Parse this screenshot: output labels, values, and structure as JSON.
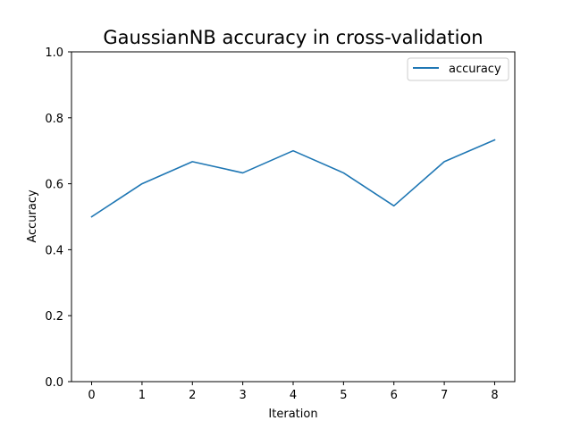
{
  "chart_data": {
    "type": "line",
    "title": "GaussianNB accuracy in cross-validation",
    "xlabel": "Iteration",
    "ylabel": "Accuracy",
    "x": [
      0,
      1,
      2,
      3,
      4,
      5,
      6,
      7,
      8
    ],
    "xticks": [
      0,
      1,
      2,
      3,
      4,
      5,
      6,
      7,
      8
    ],
    "xtick_labels": [
      "0",
      "1",
      "2",
      "3",
      "4",
      "5",
      "6",
      "7",
      "8"
    ],
    "yticks": [
      0.0,
      0.2,
      0.4,
      0.6,
      0.8,
      1.0
    ],
    "ytick_labels": [
      "0.0",
      "0.2",
      "0.4",
      "0.6",
      "0.8",
      "1.0"
    ],
    "xlim": [
      -0.4,
      8.4
    ],
    "ylim": [
      0.0,
      1.0
    ],
    "grid": false,
    "legend_position": "top-right",
    "series": [
      {
        "name": "accuracy",
        "color": "#1f77b4",
        "values": [
          0.5,
          0.6,
          0.667,
          0.633,
          0.7,
          0.633,
          0.533,
          0.667,
          0.733
        ]
      }
    ]
  }
}
